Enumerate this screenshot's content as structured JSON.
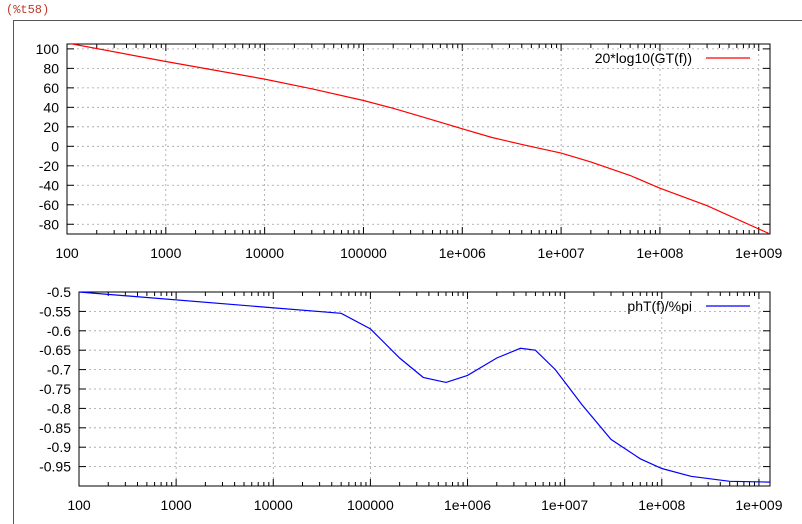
{
  "cell_label": "(%t58)",
  "chart_data": [
    {
      "type": "line",
      "title": "",
      "xlabel": "",
      "ylabel": "",
      "xscale": "log",
      "xlim": [
        100,
        1300000000
      ],
      "ylim": [
        -90,
        105
      ],
      "grid": true,
      "legend_position": "top-right",
      "x_tick_labels": [
        "100",
        "1000",
        "10000",
        "100000",
        "1e+006",
        "1e+007",
        "1e+008",
        "1e+009"
      ],
      "x_ticks": [
        100,
        1000,
        10000,
        100000,
        1000000,
        10000000,
        100000000,
        1000000000
      ],
      "y_ticks": [
        100,
        80,
        60,
        40,
        20,
        0,
        -20,
        -40,
        -60,
        -80
      ],
      "y_tick_labels": [
        "100",
        "80",
        "60",
        "40",
        "20",
        "0",
        "-20",
        "-40",
        "-60",
        "-80"
      ],
      "series": [
        {
          "name": "20*log10(GT(f))",
          "color": "#ff0000",
          "points": [
            [
              100,
              106
            ],
            [
              1000,
              87
            ],
            [
              10000,
              69
            ],
            [
              30000,
              59
            ],
            [
              100000,
              47
            ],
            [
              200000,
              39
            ],
            [
              400000,
              30
            ],
            [
              1000000,
              18
            ],
            [
              2000000,
              9
            ],
            [
              4000000,
              2
            ],
            [
              6000000,
              -2
            ],
            [
              10000000,
              -7
            ],
            [
              20000000,
              -16
            ],
            [
              50000000,
              -30
            ],
            [
              100000000,
              -43
            ],
            [
              300000000,
              -61
            ],
            [
              1300000000,
              -90
            ]
          ]
        }
      ]
    },
    {
      "type": "line",
      "title": "",
      "xlabel": "",
      "ylabel": "",
      "xscale": "log",
      "xlim": [
        100,
        1300000000
      ],
      "ylim": [
        -1.0,
        -0.5
      ],
      "grid": true,
      "legend_position": "top-right",
      "x_tick_labels": [
        "100",
        "1000",
        "10000",
        "100000",
        "1e+006",
        "1e+007",
        "1e+008",
        "1e+009"
      ],
      "x_ticks": [
        100,
        1000,
        10000,
        100000,
        1000000,
        10000000,
        100000000,
        1000000000
      ],
      "y_ticks": [
        -0.5,
        -0.55,
        -0.6,
        -0.65,
        -0.7,
        -0.75,
        -0.8,
        -0.85,
        -0.9,
        -0.95
      ],
      "y_tick_labels": [
        "-0.5",
        "-0.55",
        "-0.6",
        "-0.65",
        "-0.7",
        "-0.75",
        "-0.8",
        "-0.85",
        "-0.9",
        "-0.95"
      ],
      "series": [
        {
          "name": "phT(f)/%pi",
          "color": "#0000ff",
          "points": [
            [
              100,
              -0.5
            ],
            [
              50000,
              -0.555
            ],
            [
              100000,
              -0.595
            ],
            [
              200000,
              -0.67
            ],
            [
              350000,
              -0.72
            ],
            [
              600000,
              -0.733
            ],
            [
              1000000,
              -0.715
            ],
            [
              2000000,
              -0.67
            ],
            [
              3500000,
              -0.645
            ],
            [
              5000000,
              -0.65
            ],
            [
              8000000,
              -0.7
            ],
            [
              15000000,
              -0.79
            ],
            [
              30000000,
              -0.88
            ],
            [
              60000000,
              -0.93
            ],
            [
              100000000,
              -0.955
            ],
            [
              200000000,
              -0.975
            ],
            [
              500000000,
              -0.988
            ],
            [
              1300000000,
              -0.99
            ]
          ]
        }
      ]
    }
  ]
}
